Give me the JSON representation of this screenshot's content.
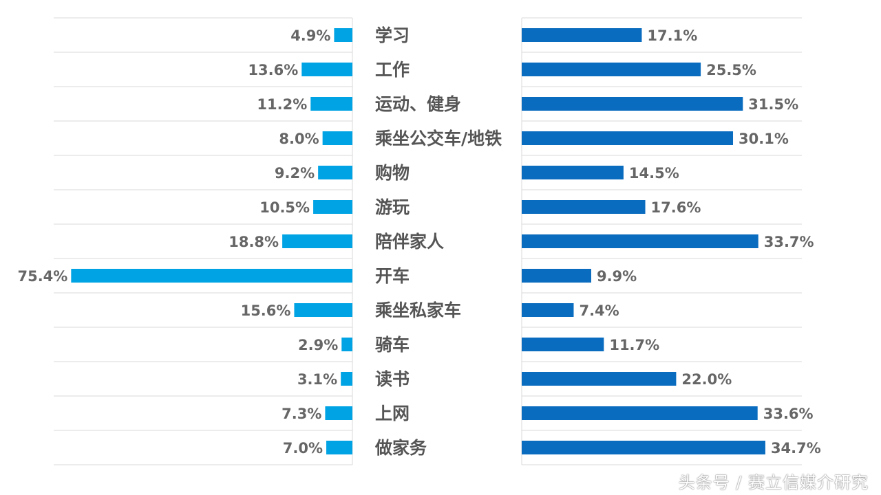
{
  "chart_data": {
    "type": "bar",
    "orientation": "horizontal-butterfly",
    "categories": [
      "学习",
      "工作",
      "运动、健身",
      "乘坐公交车/地铁",
      "购物",
      "游玩",
      "陪伴家人",
      "开车",
      "乘坐私家车",
      "骑车",
      "读书",
      "上网",
      "做家务"
    ],
    "series": [
      {
        "name": "left",
        "color": "#00a3e4",
        "direction": "left",
        "values": [
          4.9,
          13.6,
          11.2,
          8.0,
          9.2,
          10.5,
          18.8,
          75.4,
          15.6,
          2.9,
          3.1,
          7.3,
          7.0
        ],
        "labels": [
          "4.9%",
          "13.6%",
          "11.2%",
          "8.0%",
          "9.2%",
          "10.5%",
          "18.8%",
          "75.4%",
          "15.6%",
          "2.9%",
          "3.1%",
          "7.3%",
          "7.0%"
        ]
      },
      {
        "name": "right",
        "color": "#0a6cbf",
        "direction": "right",
        "values": [
          17.1,
          25.5,
          31.5,
          30.1,
          14.5,
          17.6,
          33.7,
          9.9,
          7.4,
          11.7,
          22.0,
          33.6,
          34.7
        ],
        "labels": [
          "17.1%",
          "25.5%",
          "31.5%",
          "30.1%",
          "14.5%",
          "17.6%",
          "33.7%",
          "9.9%",
          "7.4%",
          "11.7%",
          "22.0%",
          "33.6%",
          "34.7%"
        ]
      }
    ],
    "grid": true,
    "legend": "none"
  },
  "watermark": "赛立信媒介研究",
  "footer": "头条号 / 赛立信媒介研究"
}
